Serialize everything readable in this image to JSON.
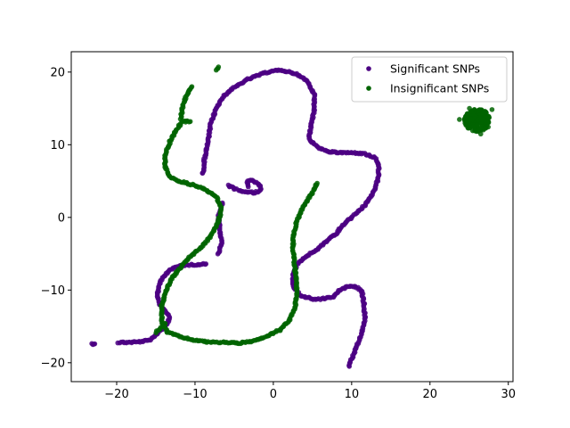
{
  "chart_data": {
    "type": "scatter",
    "title": "",
    "xlabel": "",
    "ylabel": "",
    "xlim": [
      -25.8,
      30.6
    ],
    "ylim": [
      -22.6,
      22.8
    ],
    "xticks": [
      -20,
      -10,
      0,
      10,
      20,
      30
    ],
    "yticks": [
      -20,
      -10,
      0,
      10,
      20
    ],
    "grid": false,
    "legend_position": "top-right",
    "series": [
      {
        "name": "Significant SNPs",
        "color": "#4b0082",
        "curves": [
          [
            [
              -23.2,
              -17.4
            ],
            [
              -22.8,
              -17.4
            ]
          ],
          [
            [
              -19.8,
              -17.2
            ],
            [
              -18.5,
              -17.2
            ],
            [
              -17.0,
              -17.1
            ],
            [
              -15.8,
              -16.9
            ],
            [
              -15.2,
              -16.5
            ],
            [
              -14.7,
              -15.8
            ],
            [
              -14.0,
              -15.2
            ],
            [
              -13.5,
              -14.5
            ],
            [
              -13.2,
              -13.6
            ],
            [
              -13.9,
              -12.7
            ],
            [
              -14.5,
              -12.0
            ],
            [
              -14.8,
              -11.0
            ],
            [
              -14.7,
              -9.8
            ],
            [
              -14.2,
              -8.4
            ],
            [
              -13.2,
              -7.2
            ],
            [
              -11.8,
              -6.6
            ],
            [
              -10.0,
              -6.5
            ],
            [
              -8.6,
              -6.4
            ]
          ],
          [
            [
              -7.0,
              -5.0
            ],
            [
              -6.6,
              -3.5
            ],
            [
              -6.8,
              -1.8
            ],
            [
              -7.0,
              0.2
            ],
            [
              -6.5,
              2.0
            ]
          ],
          [
            [
              -9.0,
              6.0
            ],
            [
              -8.8,
              8.0
            ],
            [
              -8.3,
              10.5
            ],
            [
              -8.0,
              12.8
            ],
            [
              -7.3,
              15.0
            ],
            [
              -6.3,
              16.8
            ],
            [
              -4.8,
              18.0
            ],
            [
              -3.3,
              19.0
            ],
            [
              -1.3,
              19.8
            ],
            [
              0.0,
              20.2
            ],
            [
              1.3,
              20.2
            ],
            [
              2.8,
              19.8
            ],
            [
              4.3,
              18.8
            ],
            [
              5.2,
              17.0
            ],
            [
              5.2,
              14.8
            ],
            [
              4.8,
              12.5
            ],
            [
              4.5,
              10.8
            ],
            [
              5.8,
              9.5
            ],
            [
              7.3,
              9.0
            ],
            [
              8.8,
              8.9
            ],
            [
              10.0,
              8.9
            ],
            [
              11.5,
              8.8
            ],
            [
              13.0,
              8.2
            ],
            [
              13.5,
              7.0
            ],
            [
              13.4,
              5.3
            ],
            [
              12.8,
              3.5
            ],
            [
              11.8,
              1.8
            ],
            [
              10.3,
              0.3
            ],
            [
              9.0,
              -1.0
            ],
            [
              8.0,
              -2.2
            ],
            [
              6.5,
              -3.5
            ],
            [
              5.5,
              -4.5
            ],
            [
              4.0,
              -5.5
            ],
            [
              3.0,
              -6.5
            ],
            [
              2.5,
              -7.8
            ],
            [
              2.5,
              -9.5
            ],
            [
              3.5,
              -10.8
            ],
            [
              5.5,
              -11.3
            ],
            [
              7.5,
              -11.0
            ],
            [
              8.5,
              -10.0
            ],
            [
              9.5,
              -9.5
            ],
            [
              10.5,
              -9.5
            ],
            [
              11.3,
              -10.2
            ],
            [
              11.6,
              -12.0
            ],
            [
              11.7,
              -14.2
            ],
            [
              11.2,
              -16.2
            ],
            [
              10.6,
              -17.8
            ],
            [
              10.0,
              -19.5
            ],
            [
              9.7,
              -20.5
            ]
          ],
          [
            [
              -5.8,
              4.4
            ],
            [
              -4.8,
              3.9
            ],
            [
              -3.8,
              3.5
            ],
            [
              -2.3,
              3.4
            ],
            [
              -1.6,
              3.8
            ],
            [
              -1.8,
              4.5
            ],
            [
              -2.6,
              5.1
            ],
            [
              -3.3,
              5.0
            ],
            [
              -3.2,
              4.2
            ]
          ]
        ]
      },
      {
        "name": "Insignificant SNPs",
        "color": "#006400",
        "curves": [
          [
            [
              -15.0,
              -15.8
            ],
            [
              -14.3,
              -15.2
            ],
            [
              -13.8,
              -14.6
            ]
          ],
          [
            [
              -13.5,
              -15.8
            ],
            [
              -12.0,
              -16.4
            ],
            [
              -10.5,
              -16.8
            ],
            [
              -8.8,
              -17.1
            ],
            [
              -7.0,
              -17.2
            ],
            [
              -5.5,
              -17.2
            ],
            [
              -4.2,
              -17.3
            ],
            [
              -3.0,
              -17.1
            ],
            [
              -1.8,
              -16.8
            ],
            [
              -0.5,
              -16.2
            ],
            [
              0.8,
              -15.5
            ],
            [
              2.0,
              -14.3
            ],
            [
              2.8,
              -12.3
            ],
            [
              3.0,
              -10.3
            ],
            [
              2.9,
              -8.3
            ],
            [
              2.7,
              -6.3
            ],
            [
              2.5,
              -4.3
            ],
            [
              2.6,
              -2.3
            ],
            [
              2.9,
              -0.8
            ],
            [
              3.5,
              0.8
            ],
            [
              4.3,
              2.3
            ],
            [
              5.2,
              3.8
            ],
            [
              5.6,
              4.7
            ]
          ],
          [
            [
              -13.5,
              -15.8
            ],
            [
              -14.2,
              -14.4
            ],
            [
              -14.3,
              -12.4
            ],
            [
              -13.8,
              -10.4
            ],
            [
              -13.0,
              -8.4
            ],
            [
              -11.8,
              -6.8
            ],
            [
              -10.6,
              -5.4
            ],
            [
              -9.3,
              -4.2
            ],
            [
              -8.2,
              -2.9
            ],
            [
              -7.3,
              -1.3
            ],
            [
              -6.8,
              0.2
            ],
            [
              -6.7,
              1.5
            ],
            [
              -7.2,
              2.7
            ],
            [
              -8.5,
              3.7
            ],
            [
              -10.0,
              4.4
            ],
            [
              -11.8,
              4.9
            ],
            [
              -13.2,
              5.6
            ],
            [
              -13.8,
              7.0
            ],
            [
              -13.8,
              8.7
            ],
            [
              -13.2,
              10.4
            ],
            [
              -12.4,
              12.0
            ],
            [
              -11.6,
              13.2
            ],
            [
              -10.6,
              13.2
            ]
          ],
          [
            [
              -11.8,
              13.6
            ],
            [
              -11.6,
              15.2
            ],
            [
              -11.1,
              16.8
            ],
            [
              -10.4,
              18.0
            ]
          ],
          [
            [
              -7.3,
              20.3
            ],
            [
              -7.0,
              20.7
            ]
          ]
        ],
        "cluster": {
          "center": [
            26.0,
            13.4
          ],
          "radius": [
            1.6,
            1.6
          ]
        }
      }
    ]
  }
}
